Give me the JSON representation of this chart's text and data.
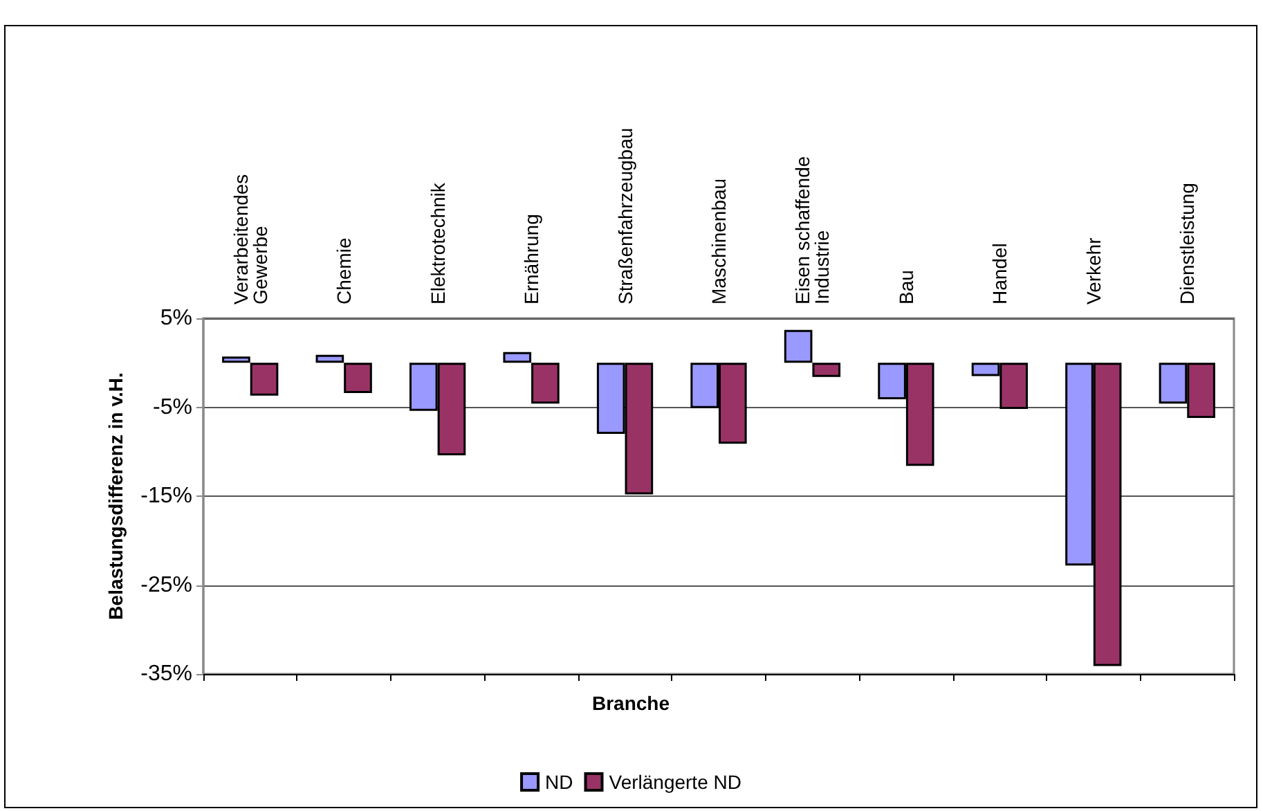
{
  "chart_data": {
    "type": "bar",
    "xlabel": "Branche",
    "ylabel": "Belastungsdifferenz in v.H.",
    "categories": [
      "Verarbeitendes Gewerbe",
      "Chemie",
      "Elektrotechnik",
      "Ernährung",
      "Straßenfahrzeugbau",
      "Maschinenbau",
      "Eisen schaffende Industrie",
      "Bau",
      "Handel",
      "Verkehr",
      "Dienstleistung"
    ],
    "series": [
      {
        "name": "ND",
        "color": "#9999ff",
        "values": [
          0.7,
          0.9,
          -5.4,
          1.2,
          -8.0,
          -5.1,
          3.7,
          -4.1,
          -1.5,
          -22.8,
          -4.6
        ]
      },
      {
        "name": "Verlängerte ND",
        "color": "#993366",
        "values": [
          -3.7,
          -3.4,
          -10.4,
          -4.6,
          -14.8,
          -9.1,
          -1.6,
          -11.6,
          -5.2,
          -34.1,
          -6.2
        ]
      }
    ],
    "ylim": [
      -35,
      5
    ],
    "yticks": [
      {
        "value": 5,
        "label": "5%"
      },
      {
        "value": -5,
        "label": "-5%"
      },
      {
        "value": -15,
        "label": "-15%"
      },
      {
        "value": -25,
        "label": "-25%"
      },
      {
        "value": -35,
        "label": "-35%"
      }
    ],
    "grid": "y",
    "legend": "bottom"
  }
}
